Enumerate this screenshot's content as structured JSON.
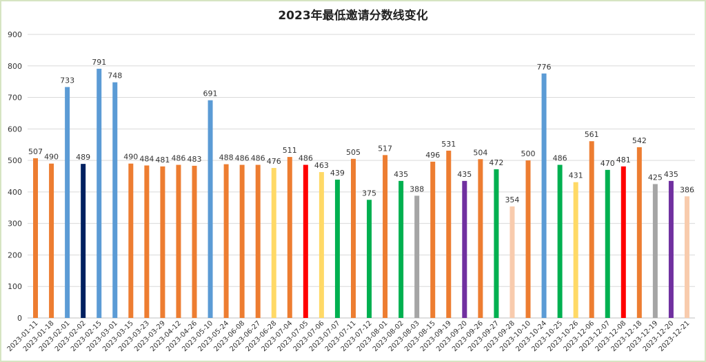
{
  "chart_data": {
    "type": "bar",
    "title": "2023年最低邀请分数线变化",
    "ylim": [
      0,
      900
    ],
    "yticks": [
      "0",
      "100",
      "200",
      "300",
      "400",
      "500",
      "600",
      "700",
      "800",
      "900"
    ],
    "grid": true,
    "legend": "none",
    "categories": [
      "2023-01-11",
      "2023-01-18",
      "2023-02-01",
      "2023-02-02",
      "2023-02-15",
      "2023-03-01",
      "2023-03-15",
      "2023-03-23",
      "2023-03-29",
      "2023-04-12",
      "2023-04-26",
      "2023-05-10",
      "2023-05-24",
      "2023-06-08",
      "2023-06-27",
      "2023-06-28",
      "2023-07-04",
      "2023-07-05",
      "2023-07-06",
      "2023-07-07",
      "2023-07-11",
      "2023-07-12",
      "2023-08-01",
      "2023-08-02",
      "2023-08-03",
      "2023-08-15",
      "2023-09-19",
      "2023-09-20",
      "2023-09-26",
      "2023-09-27",
      "2023-09-28",
      "2023-10-10",
      "2023-10-24",
      "2023-10-25",
      "2023-10-26",
      "2023-12-06",
      "2023-12-07",
      "2023-12-08",
      "2023-12-18",
      "2023-12-19",
      "2023-12-20",
      "2023-12-21"
    ],
    "values": [
      507,
      490,
      733,
      489,
      791,
      748,
      490,
      484,
      481,
      486,
      483,
      691,
      488,
      486,
      486,
      476,
      511,
      486,
      463,
      439,
      505,
      375,
      517,
      435,
      388,
      496,
      531,
      435,
      504,
      472,
      354,
      500,
      776,
      486,
      431,
      561,
      470,
      481,
      542,
      425,
      435,
      386
    ],
    "value_labels": [
      "507",
      "490",
      "733",
      "489",
      "791",
      "748",
      "490",
      "484",
      "481",
      "486",
      "483",
      "691",
      "488",
      "486",
      "486",
      "476",
      "511",
      "486",
      "463",
      "439",
      "505",
      "375",
      "517",
      "435",
      "388",
      "496",
      "531",
      "435",
      "504",
      "472",
      "354",
      "500",
      "776",
      "486",
      "431",
      "561",
      "470",
      "481",
      "542",
      "425",
      "435",
      "386"
    ],
    "colors": [
      "#ED7D31",
      "#ED7D31",
      "#5B9BD5",
      "#002060",
      "#5B9BD5",
      "#5B9BD5",
      "#ED7D31",
      "#ED7D31",
      "#ED7D31",
      "#ED7D31",
      "#ED7D31",
      "#5B9BD5",
      "#ED7D31",
      "#ED7D31",
      "#ED7D31",
      "#FFD966",
      "#ED7D31",
      "#FF0000",
      "#FFD966",
      "#00B050",
      "#ED7D31",
      "#00B050",
      "#ED7D31",
      "#00B050",
      "#A5A5A5",
      "#ED7D31",
      "#ED7D31",
      "#7030A0",
      "#ED7D31",
      "#00B050",
      "#F8CBAD",
      "#ED7D31",
      "#5B9BD5",
      "#00B050",
      "#FFD966",
      "#ED7D31",
      "#00B050",
      "#FF0000",
      "#ED7D31",
      "#A5A5A5",
      "#7030A0",
      "#F8CBAD"
    ]
  }
}
